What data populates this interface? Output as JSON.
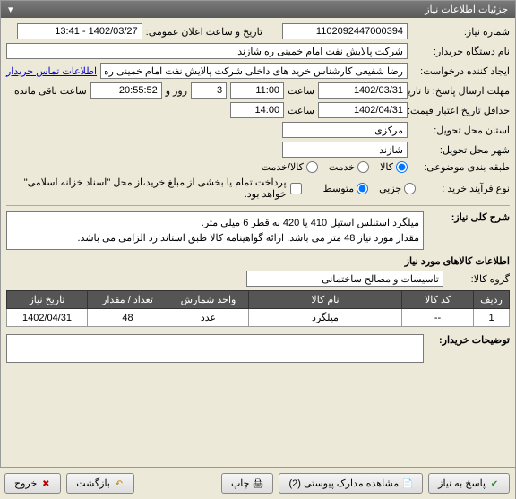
{
  "window": {
    "title": "جزئیات اطلاعات نیاز"
  },
  "fields": {
    "need_number_label": "شماره نیاز:",
    "need_number": "1102092447000394",
    "announce_label": "تاریخ و ساعت اعلان عمومی:",
    "announce_value": "1402/03/27 - 13:41",
    "buyer_label": "نام دستگاه خریدار:",
    "buyer_value": "شرکت پالایش نفت امام خمینی ره شازند",
    "requester_label": "ایجاد کننده درخواست:",
    "requester_value": "رضا شفیعی کارشناس خرید های داخلی شرکت پالایش نفت امام خمینی ره",
    "contact_link": "اطلاعات تماس خریدار",
    "deadline_label": "مهلت ارسال پاسخ: تا تاریخ:",
    "deadline_date": "1402/03/31",
    "deadline_time_label": "ساعت",
    "deadline_time": "11:00",
    "remain_days": "3",
    "remain_days_label": "روز و",
    "remain_time": "20:55:52",
    "remain_suffix": "ساعت باقی مانده",
    "validity_label": "حداقل تاریخ اعتبار قیمت: تا تاریخ:",
    "validity_date": "1402/04/31",
    "validity_time_label": "ساعت",
    "validity_time": "14:00",
    "province_label": "استان محل تحویل:",
    "province_value": "مرکزی",
    "city_label": "شهر محل تحویل:",
    "city_value": "شازند",
    "category_label": "طبقه بندی موضوعی:",
    "cat_goods": "کالا",
    "cat_service": "خدمت",
    "cat_goods_service": "کالا/خدمت",
    "process_label": "نوع فرآیند خرید :",
    "proc_partial": "جزیی",
    "proc_medium": "متوسط",
    "pay_note": "پرداخت تمام یا بخشی از مبلغ خرید،از محل \"اسناد خزانه اسلامی\" خواهد بود."
  },
  "desc": {
    "title_label": "شرح کلی نیاز:",
    "line1": "میلگرد استنلس استیل 410 یا 420 به قطر 6 میلی متر.",
    "line2": "مقدار مورد نیاز 48 متر می باشد. ارائه گواهینامه کالا طبق استاندارد الزامی می باشد."
  },
  "items_section": {
    "title": "اطلاعات کالاهای مورد نیاز",
    "group_label": "گروه کالا:",
    "group_value": "تاسیسات و مصالح ساختمانی"
  },
  "table": {
    "headers": {
      "row": "ردیف",
      "code": "کد کالا",
      "name": "نام کالا",
      "unit": "واحد شمارش",
      "qty": "تعداد / مقدار",
      "date": "تاریخ نیاز"
    },
    "rows": [
      {
        "idx": "1",
        "code": "--",
        "name": "میلگرد",
        "unit": "عدد",
        "qty": "48",
        "date": "1402/04/31"
      }
    ]
  },
  "notes": {
    "label": "توضیحات خریدار:"
  },
  "buttons": {
    "respond": "پاسخ به نیاز",
    "attachments": "مشاهده مدارک پیوستی (2)",
    "print": "چاپ",
    "back": "بازگشت",
    "exit": "خروج"
  }
}
